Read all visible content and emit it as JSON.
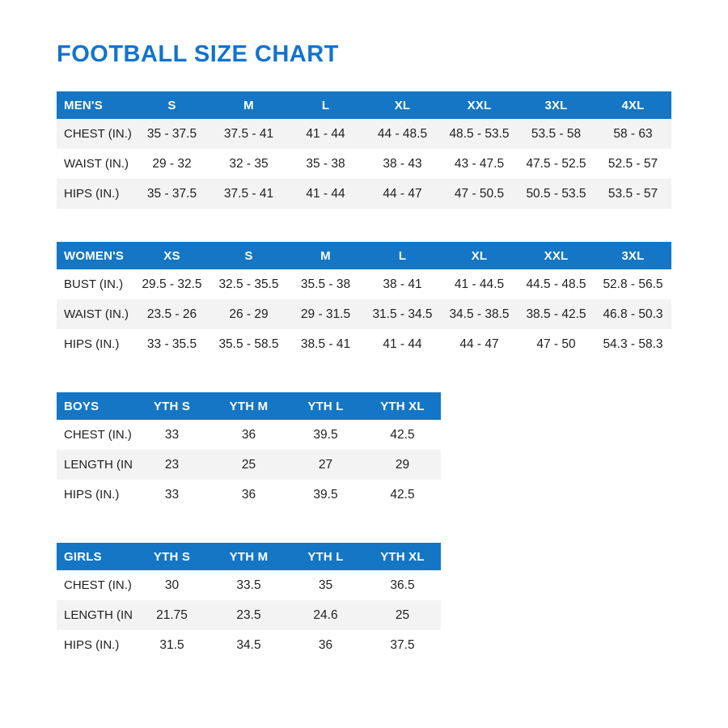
{
  "page": {
    "title": "FOOTBALL SIZE CHART"
  },
  "colors": {
    "header_bg": "#1476C4",
    "header_text": "#FFFFFF",
    "title": "#1273CE",
    "stripe": "#F3F3F4",
    "text": "#1F1F1F"
  },
  "tables": [
    {
      "id": "mens",
      "header": [
        "MEN'S",
        "S",
        "M",
        "L",
        "XL",
        "XXL",
        "3XL",
        "4XL"
      ],
      "rows": [
        {
          "label": "CHEST (IN.)",
          "striped": true,
          "values": [
            "35 - 37.5",
            "37.5 - 41",
            "41 - 44",
            "44 - 48.5",
            "48.5 - 53.5",
            "53.5 - 58",
            "58 - 63"
          ]
        },
        {
          "label": "WAIST (IN.)",
          "striped": false,
          "values": [
            "29 - 32",
            "32 - 35",
            "35 - 38",
            "38 - 43",
            "43 - 47.5",
            "47.5 - 52.5",
            "52.5 - 57"
          ]
        },
        {
          "label": "HIPS (IN.)",
          "striped": true,
          "values": [
            "35 - 37.5",
            "37.5 - 41",
            "41 - 44",
            "44 - 47",
            "47 - 50.5",
            "50.5 - 53.5",
            "53.5 - 57"
          ]
        }
      ]
    },
    {
      "id": "womens",
      "header": [
        "WOMEN'S",
        "XS",
        "S",
        "M",
        "L",
        "XL",
        "XXL",
        "3XL"
      ],
      "rows": [
        {
          "label": "BUST (IN.)",
          "striped": false,
          "values": [
            "29.5 - 32.5",
            "32.5 - 35.5",
            "35.5 - 38",
            "38 - 41",
            "41 - 44.5",
            "44.5 - 48.5",
            "52.8 - 56.5"
          ]
        },
        {
          "label": "WAIST (IN.)",
          "striped": true,
          "values": [
            "23.5 - 26",
            "26 - 29",
            "29 - 31.5",
            "31.5 - 34.5",
            "34.5 - 38.5",
            "38.5 - 42.5",
            "46.8 - 50.3"
          ]
        },
        {
          "label": "HIPS (IN.)",
          "striped": false,
          "values": [
            "33 - 35.5",
            "35.5 - 58.5",
            "38.5 - 41",
            "41 - 44",
            "44 - 47",
            "47 - 50",
            "54.3 - 58.3"
          ]
        }
      ]
    },
    {
      "id": "boys",
      "header": [
        "BOYS",
        "YTH S",
        "YTH M",
        "YTH L",
        "YTH XL"
      ],
      "rows": [
        {
          "label": "CHEST (IN.)",
          "striped": false,
          "values": [
            "33",
            "36",
            "39.5",
            "42.5"
          ]
        },
        {
          "label": "LENGTH (IN.)",
          "striped": true,
          "values": [
            "23",
            "25",
            "27",
            "29"
          ]
        },
        {
          "label": "HIPS (IN.)",
          "striped": false,
          "values": [
            "33",
            "36",
            "39.5",
            "42.5"
          ]
        }
      ]
    },
    {
      "id": "girls",
      "header": [
        "GIRLS",
        "YTH S",
        "YTH M",
        "YTH L",
        "YTH XL"
      ],
      "rows": [
        {
          "label": "CHEST (IN.)",
          "striped": false,
          "values": [
            "30",
            "33.5",
            "35",
            "36.5"
          ]
        },
        {
          "label": "LENGTH (IN.)",
          "striped": true,
          "values": [
            "21.75",
            "23.5",
            "24.6",
            "25"
          ]
        },
        {
          "label": "HIPS (IN.)",
          "striped": false,
          "values": [
            "31.5",
            "34.5",
            "36",
            "37.5"
          ]
        }
      ]
    }
  ]
}
